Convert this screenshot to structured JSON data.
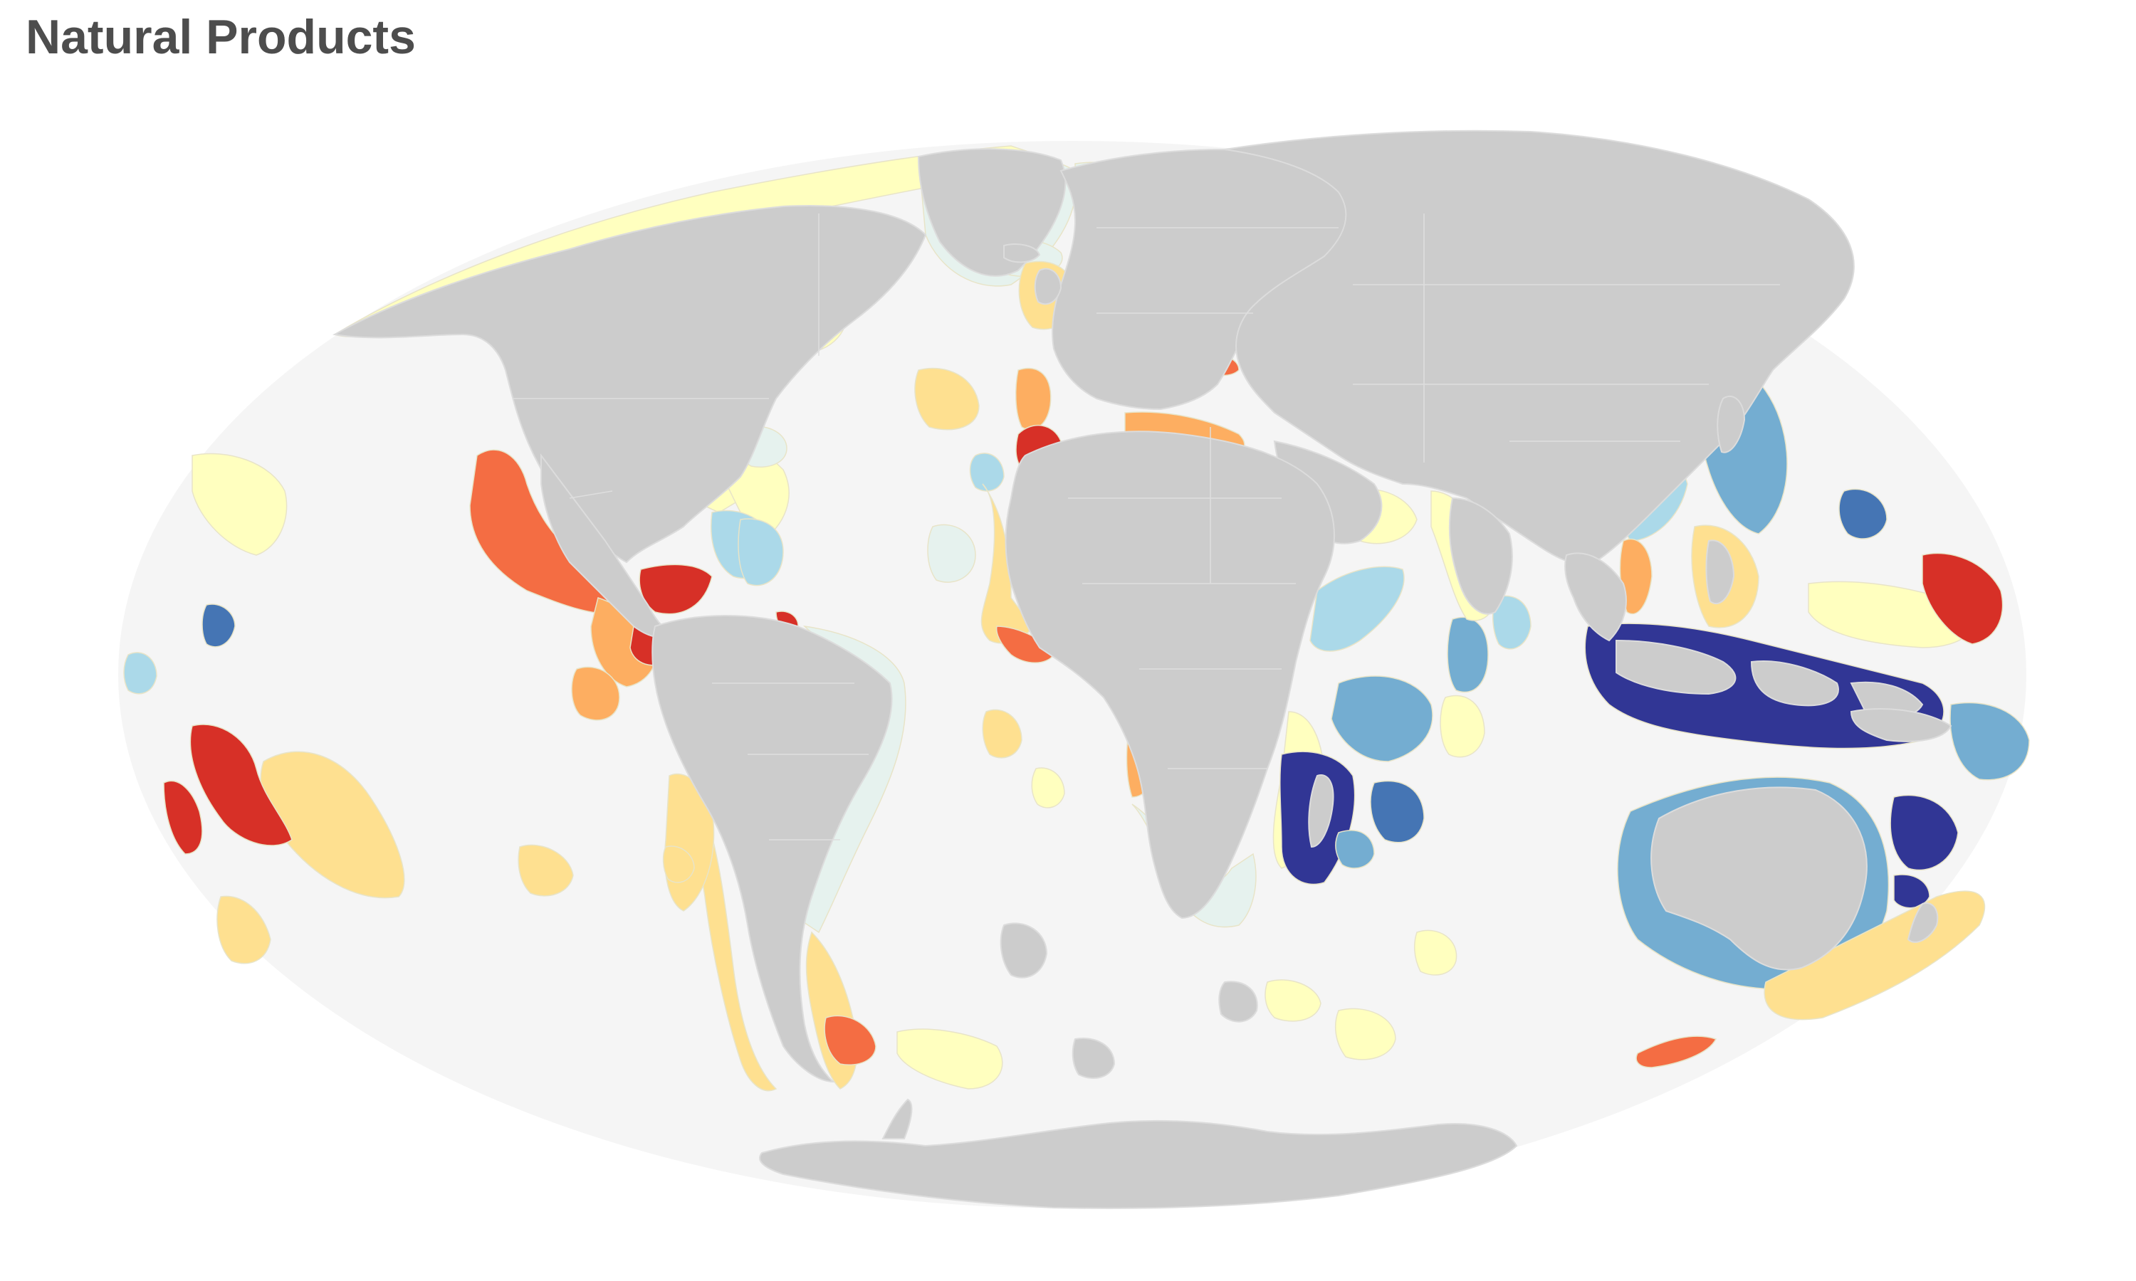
{
  "title": "Natural Products",
  "map": {
    "projection": "mollweide",
    "ocean_color": "#f5f5f5",
    "land_color": "#cccccc",
    "background": "#ffffff",
    "legend_visible": false,
    "scale_colors": [
      "#313695",
      "#4575b4",
      "#74add1",
      "#abd9e9",
      "#e0f3f8",
      "#ffffbf",
      "#fee090",
      "#fdae61",
      "#f46d43",
      "#d73027"
    ],
    "no_data_color": "#e6f2ee"
  }
}
